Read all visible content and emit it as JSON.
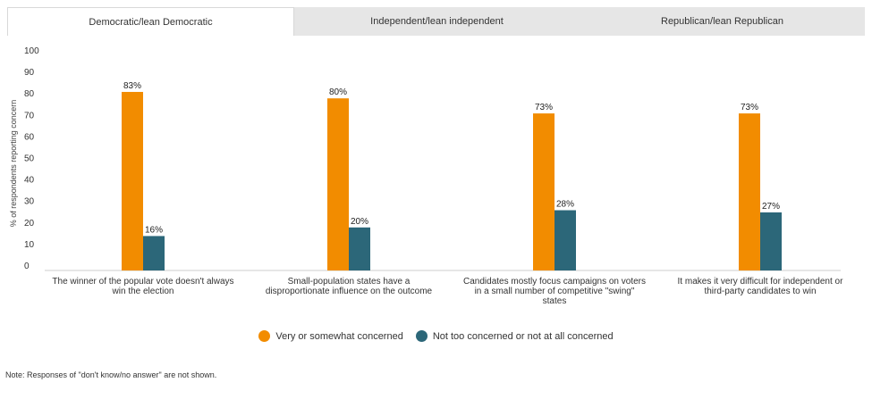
{
  "tabs": [
    {
      "label": "Democratic/lean Democratic",
      "active": true
    },
    {
      "label": "Independent/lean independent",
      "active": false
    },
    {
      "label": "Republican/lean Republican",
      "active": false
    }
  ],
  "chart_data": {
    "type": "bar",
    "ylabel": "% of respondents reporting concern",
    "ylim": [
      0,
      100
    ],
    "yticks": [
      0,
      10,
      20,
      30,
      40,
      50,
      60,
      70,
      80,
      90,
      100
    ],
    "grid": false,
    "legend_position": "bottom",
    "categories": [
      [
        "The winner of the popular vote doesn't always",
        "win the election"
      ],
      [
        "Small-population states have a",
        "disproportionate influence on the outcome"
      ],
      [
        "Candidates mostly focus campaigns on voters",
        "in a small number of competitive \"swing\"",
        "states"
      ],
      [
        "It makes it very difficult for independent or",
        "third-party candidates to win"
      ]
    ],
    "series": [
      {
        "name": "Very or somewhat concerned",
        "color": "#F28C00",
        "values": [
          83,
          80,
          73,
          73
        ],
        "labels": [
          "83%",
          "80%",
          "73%",
          "73%"
        ]
      },
      {
        "name": "Not too concerned or not at all concerned",
        "color": "#2C6779",
        "values": [
          16,
          20,
          28,
          27
        ],
        "labels": [
          "16%",
          "20%",
          "28%",
          "27%"
        ]
      }
    ]
  },
  "legend": [
    {
      "label": "Very or somewhat concerned",
      "color": "#F28C00"
    },
    {
      "label": "Not too concerned or not at all concerned",
      "color": "#2C6779"
    }
  ],
  "note": "Note: Responses of \"don't know/no answer\" are not shown."
}
